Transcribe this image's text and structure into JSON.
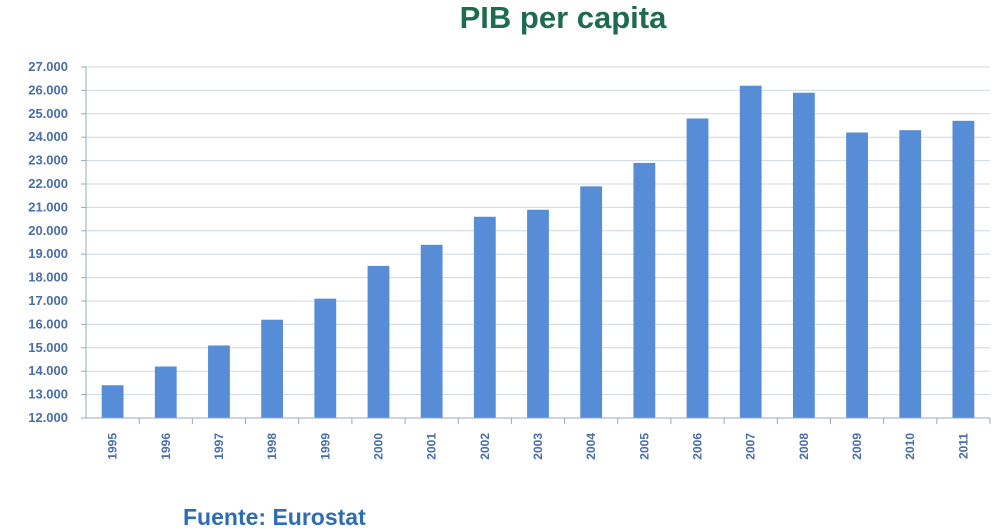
{
  "title": "PIB per capita",
  "source": "Fuente: Eurostat",
  "colors": {
    "title": "#1f6b4e",
    "source": "#2e6db5",
    "bar": "#568dd6",
    "axis_text": "#4a6ea8",
    "grid": "#cfd8e3",
    "axis": "#9aa9bb"
  },
  "chart_data": {
    "type": "bar",
    "title": "PIB per capita",
    "xlabel": "",
    "ylabel": "",
    "ylim": [
      12000,
      27000
    ],
    "yticks": [
      12000,
      13000,
      14000,
      15000,
      16000,
      17000,
      18000,
      19000,
      20000,
      21000,
      22000,
      23000,
      24000,
      25000,
      26000,
      27000
    ],
    "ytick_labels": [
      "12.000",
      "13.000",
      "14.000",
      "15.000",
      "16.000",
      "17.000",
      "18.000",
      "19.000",
      "20.000",
      "21.000",
      "22.000",
      "23.000",
      "24.000",
      "25.000",
      "26.000",
      "27.000"
    ],
    "grid": true,
    "categories": [
      "1995",
      "1996",
      "1997",
      "1998",
      "1999",
      "2000",
      "2001",
      "2002",
      "2003",
      "2004",
      "2005",
      "2006",
      "2007",
      "2008",
      "2009",
      "2010",
      "2011"
    ],
    "values": [
      13400,
      14200,
      15100,
      16200,
      17100,
      18500,
      19400,
      20600,
      20900,
      21900,
      22900,
      24800,
      26200,
      25900,
      24200,
      24300,
      24700
    ]
  }
}
